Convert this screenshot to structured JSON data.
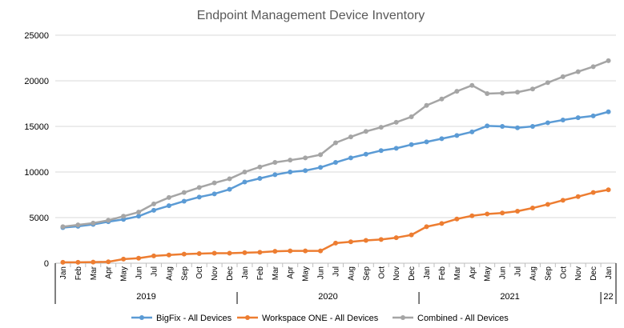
{
  "chart_data": {
    "type": "line",
    "title": "Endpoint Management Device Inventory",
    "xlabel": "",
    "ylabel": "",
    "ylim": [
      0,
      25000
    ],
    "yticks": [
      0,
      5000,
      10000,
      15000,
      20000,
      25000
    ],
    "ytick_labels": [
      "0",
      "5000",
      "10000",
      "15000",
      "20000",
      "25000"
    ],
    "categories": [
      "Jan",
      "Feb",
      "Mar",
      "Apr",
      "May",
      "Jun",
      "Jul",
      "Aug",
      "Sep",
      "Oct",
      "Nov",
      "Dec",
      "Jan",
      "Feb",
      "Mar",
      "Apr",
      "May",
      "Jun",
      "Jul",
      "Aug",
      "Sep",
      "Oct",
      "Nov",
      "Dec",
      "Jan",
      "Feb",
      "Mar",
      "Apr",
      "May",
      "Jun",
      "Jul",
      "Aug",
      "Sep",
      "Oct",
      "Nov",
      "Dec",
      "Jan"
    ],
    "year_groups": [
      {
        "label": "2019",
        "count": 12
      },
      {
        "label": "2020",
        "count": 12
      },
      {
        "label": "2021",
        "count": 12
      },
      {
        "label": "22",
        "count": 1
      }
    ],
    "grid": true,
    "legend_position": "bottom",
    "series": [
      {
        "name": "BigFix - All Devices",
        "color": "#5B9BD5",
        "values": [
          3900,
          4050,
          4250,
          4550,
          4800,
          5150,
          5800,
          6300,
          6800,
          7250,
          7600,
          8100,
          8900,
          9300,
          9700,
          10000,
          10150,
          10500,
          11050,
          11550,
          11950,
          12350,
          12600,
          13000,
          13300,
          13650,
          14000,
          14400,
          15050,
          15000,
          14850,
          15000,
          15400,
          15700,
          15950,
          16150,
          16600
        ]
      },
      {
        "name": "Workspace ONE - All Devices",
        "color": "#ED7D31",
        "values": [
          100,
          100,
          120,
          150,
          450,
          550,
          800,
          900,
          1000,
          1050,
          1100,
          1100,
          1150,
          1200,
          1300,
          1350,
          1350,
          1350,
          2200,
          2350,
          2500,
          2600,
          2800,
          3100,
          4000,
          4350,
          4850,
          5200,
          5400,
          5500,
          5700,
          6050,
          6450,
          6900,
          7300,
          7750,
          8050
        ]
      },
      {
        "name": "Combined - All Devices",
        "color": "#A5A5A5",
        "values": [
          4000,
          4200,
          4400,
          4700,
          5150,
          5600,
          6500,
          7200,
          7750,
          8300,
          8800,
          9250,
          10000,
          10550,
          11050,
          11300,
          11550,
          11900,
          13200,
          13850,
          14450,
          14900,
          15450,
          16050,
          17300,
          18000,
          18850,
          19500,
          18600,
          18650,
          18750,
          19100,
          19800,
          20450,
          21000,
          21550,
          22200
        ]
      }
    ]
  }
}
